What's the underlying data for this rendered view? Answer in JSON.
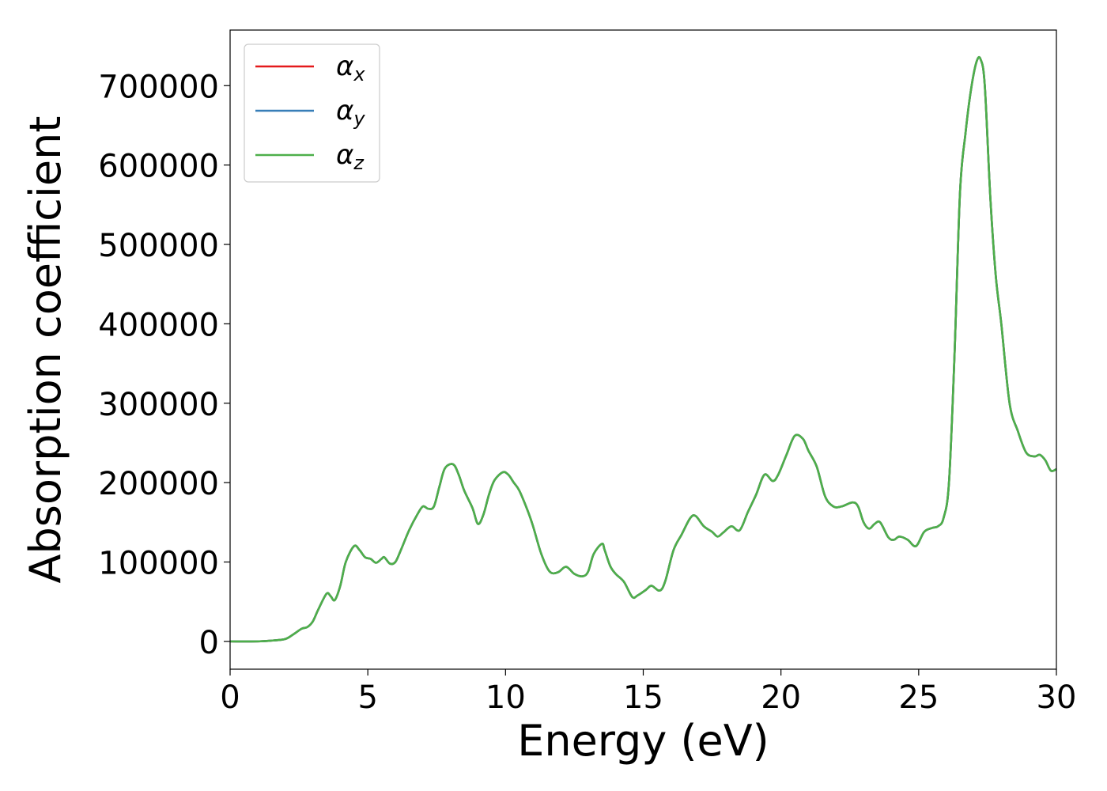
{
  "chart_data": {
    "type": "line",
    "title": "",
    "xlabel": "Energy (eV)",
    "ylabel": "Absorption coefficient",
    "xlim": [
      0,
      30
    ],
    "ylim": [
      -35000,
      770000
    ],
    "xticks": [
      0,
      5,
      10,
      15,
      20,
      25,
      30
    ],
    "xtick_labels": [
      "0",
      "5",
      "10",
      "15",
      "20",
      "25",
      "30"
    ],
    "yticks": [
      0,
      100000,
      200000,
      300000,
      400000,
      500000,
      600000,
      700000
    ],
    "ytick_labels": [
      "0",
      "100000",
      "200000",
      "300000",
      "400000",
      "500000",
      "600000",
      "700000"
    ],
    "grid": false,
    "legend_position": "top-left",
    "x": [
      0,
      1.0,
      1.5,
      2.0,
      2.3,
      2.6,
      2.8,
      3.0,
      3.2,
      3.5,
      3.65,
      3.8,
      4.0,
      4.2,
      4.5,
      4.7,
      4.9,
      5.1,
      5.3,
      5.5,
      5.6,
      5.8,
      6.0,
      6.2,
      6.5,
      6.8,
      7.0,
      7.2,
      7.4,
      7.6,
      7.8,
      8.1,
      8.3,
      8.5,
      8.8,
      9.0,
      9.2,
      9.4,
      9.6,
      9.9,
      10.1,
      10.3,
      10.5,
      10.8,
      11.0,
      11.3,
      11.6,
      11.9,
      12.2,
      12.5,
      12.8,
      13.0,
      13.2,
      13.5,
      13.6,
      13.8,
      14.0,
      14.3,
      14.6,
      14.8,
      15.1,
      15.3,
      15.6,
      15.8,
      16.1,
      16.4,
      16.7,
      16.9,
      17.2,
      17.5,
      17.7,
      17.9,
      18.2,
      18.5,
      18.8,
      19.1,
      19.4,
      19.7,
      19.9,
      20.2,
      20.5,
      20.8,
      21.0,
      21.3,
      21.6,
      21.9,
      22.2,
      22.6,
      22.8,
      23.0,
      23.2,
      23.4,
      23.6,
      23.9,
      24.1,
      24.3,
      24.6,
      24.9,
      25.2,
      25.5,
      25.7,
      25.9,
      26.1,
      26.3,
      26.5,
      26.7,
      26.9,
      27.1,
      27.25,
      27.4,
      27.6,
      27.8,
      28.0,
      28.3,
      28.6,
      28.9,
      29.2,
      29.4,
      29.6,
      29.8,
      30.0
    ],
    "series": [
      {
        "name": "α_x",
        "label_base": "α",
        "label_sub": "x",
        "color": "#e41a1c",
        "values": [
          0,
          0,
          1000,
          3000,
          9000,
          16000,
          18000,
          25000,
          40000,
          60000,
          57000,
          52000,
          70000,
          100000,
          120000,
          115000,
          106000,
          104000,
          99000,
          104000,
          106000,
          98000,
          100000,
          115000,
          140000,
          160000,
          170000,
          167000,
          170000,
          195000,
          218000,
          223000,
          210000,
          190000,
          168000,
          148000,
          160000,
          185000,
          203000,
          213000,
          210000,
          200000,
          190000,
          165000,
          145000,
          110000,
          88000,
          87000,
          94000,
          85000,
          82000,
          88000,
          110000,
          123000,
          115000,
          95000,
          85000,
          75000,
          56000,
          58000,
          65000,
          70000,
          64000,
          76000,
          115000,
          135000,
          155000,
          158000,
          145000,
          138000,
          132000,
          137000,
          145000,
          140000,
          163000,
          185000,
          210000,
          202000,
          210000,
          235000,
          259000,
          255000,
          240000,
          220000,
          183000,
          170000,
          170000,
          175000,
          170000,
          150000,
          142000,
          148000,
          150000,
          131000,
          128000,
          132000,
          128000,
          120000,
          138000,
          143000,
          145000,
          155000,
          200000,
          360000,
          565000,
          640000,
          695000,
          730000,
          733000,
          700000,
          560000,
          460000,
          400000,
          300000,
          265000,
          238000,
          233000,
          235000,
          228000,
          215000,
          217000
        ]
      },
      {
        "name": "α_y",
        "label_base": "α",
        "label_sub": "y",
        "color": "#377eb8",
        "values": [
          0,
          0,
          1000,
          3000,
          9000,
          16000,
          18000,
          25000,
          40000,
          60000,
          57000,
          52000,
          70000,
          100000,
          120000,
          115000,
          106000,
          104000,
          99000,
          104000,
          106000,
          98000,
          100000,
          115000,
          140000,
          160000,
          170000,
          167000,
          170000,
          195000,
          218000,
          223000,
          210000,
          190000,
          168000,
          148000,
          160000,
          185000,
          203000,
          213000,
          210000,
          200000,
          190000,
          165000,
          145000,
          110000,
          88000,
          87000,
          94000,
          85000,
          82000,
          88000,
          110000,
          123000,
          115000,
          95000,
          85000,
          75000,
          56000,
          58000,
          65000,
          70000,
          64000,
          76000,
          115000,
          135000,
          155000,
          158000,
          145000,
          138000,
          132000,
          137000,
          145000,
          140000,
          163000,
          185000,
          210000,
          202000,
          210000,
          235000,
          259000,
          255000,
          240000,
          220000,
          183000,
          170000,
          170000,
          175000,
          170000,
          150000,
          142000,
          148000,
          150000,
          131000,
          128000,
          132000,
          128000,
          120000,
          138000,
          143000,
          145000,
          155000,
          200000,
          360000,
          565000,
          640000,
          695000,
          730000,
          733000,
          700000,
          560000,
          460000,
          400000,
          300000,
          265000,
          238000,
          233000,
          235000,
          228000,
          215000,
          217000
        ]
      },
      {
        "name": "α_z",
        "label_base": "α",
        "label_sub": "z",
        "color": "#4daf4a",
        "values": [
          0,
          0,
          1000,
          3000,
          9000,
          16000,
          18000,
          25000,
          40000,
          60000,
          57000,
          52000,
          70000,
          100000,
          120000,
          115000,
          106000,
          104000,
          99000,
          104000,
          106000,
          98000,
          100000,
          115000,
          140000,
          160000,
          170000,
          167000,
          170000,
          195000,
          218000,
          223000,
          210000,
          190000,
          168000,
          148000,
          160000,
          185000,
          203000,
          213000,
          210000,
          200000,
          190000,
          165000,
          145000,
          110000,
          88000,
          87000,
          94000,
          85000,
          82000,
          88000,
          110000,
          123000,
          115000,
          95000,
          85000,
          75000,
          56000,
          58000,
          65000,
          70000,
          64000,
          76000,
          115000,
          135000,
          155000,
          158000,
          145000,
          138000,
          132000,
          137000,
          145000,
          140000,
          163000,
          185000,
          210000,
          202000,
          210000,
          235000,
          259000,
          255000,
          240000,
          220000,
          183000,
          170000,
          170000,
          175000,
          170000,
          150000,
          142000,
          148000,
          150000,
          131000,
          128000,
          132000,
          128000,
          120000,
          138000,
          143000,
          145000,
          155000,
          200000,
          360000,
          565000,
          640000,
          695000,
          730000,
          733000,
          700000,
          560000,
          460000,
          400000,
          300000,
          265000,
          238000,
          233000,
          235000,
          228000,
          215000,
          217000
        ]
      }
    ]
  }
}
